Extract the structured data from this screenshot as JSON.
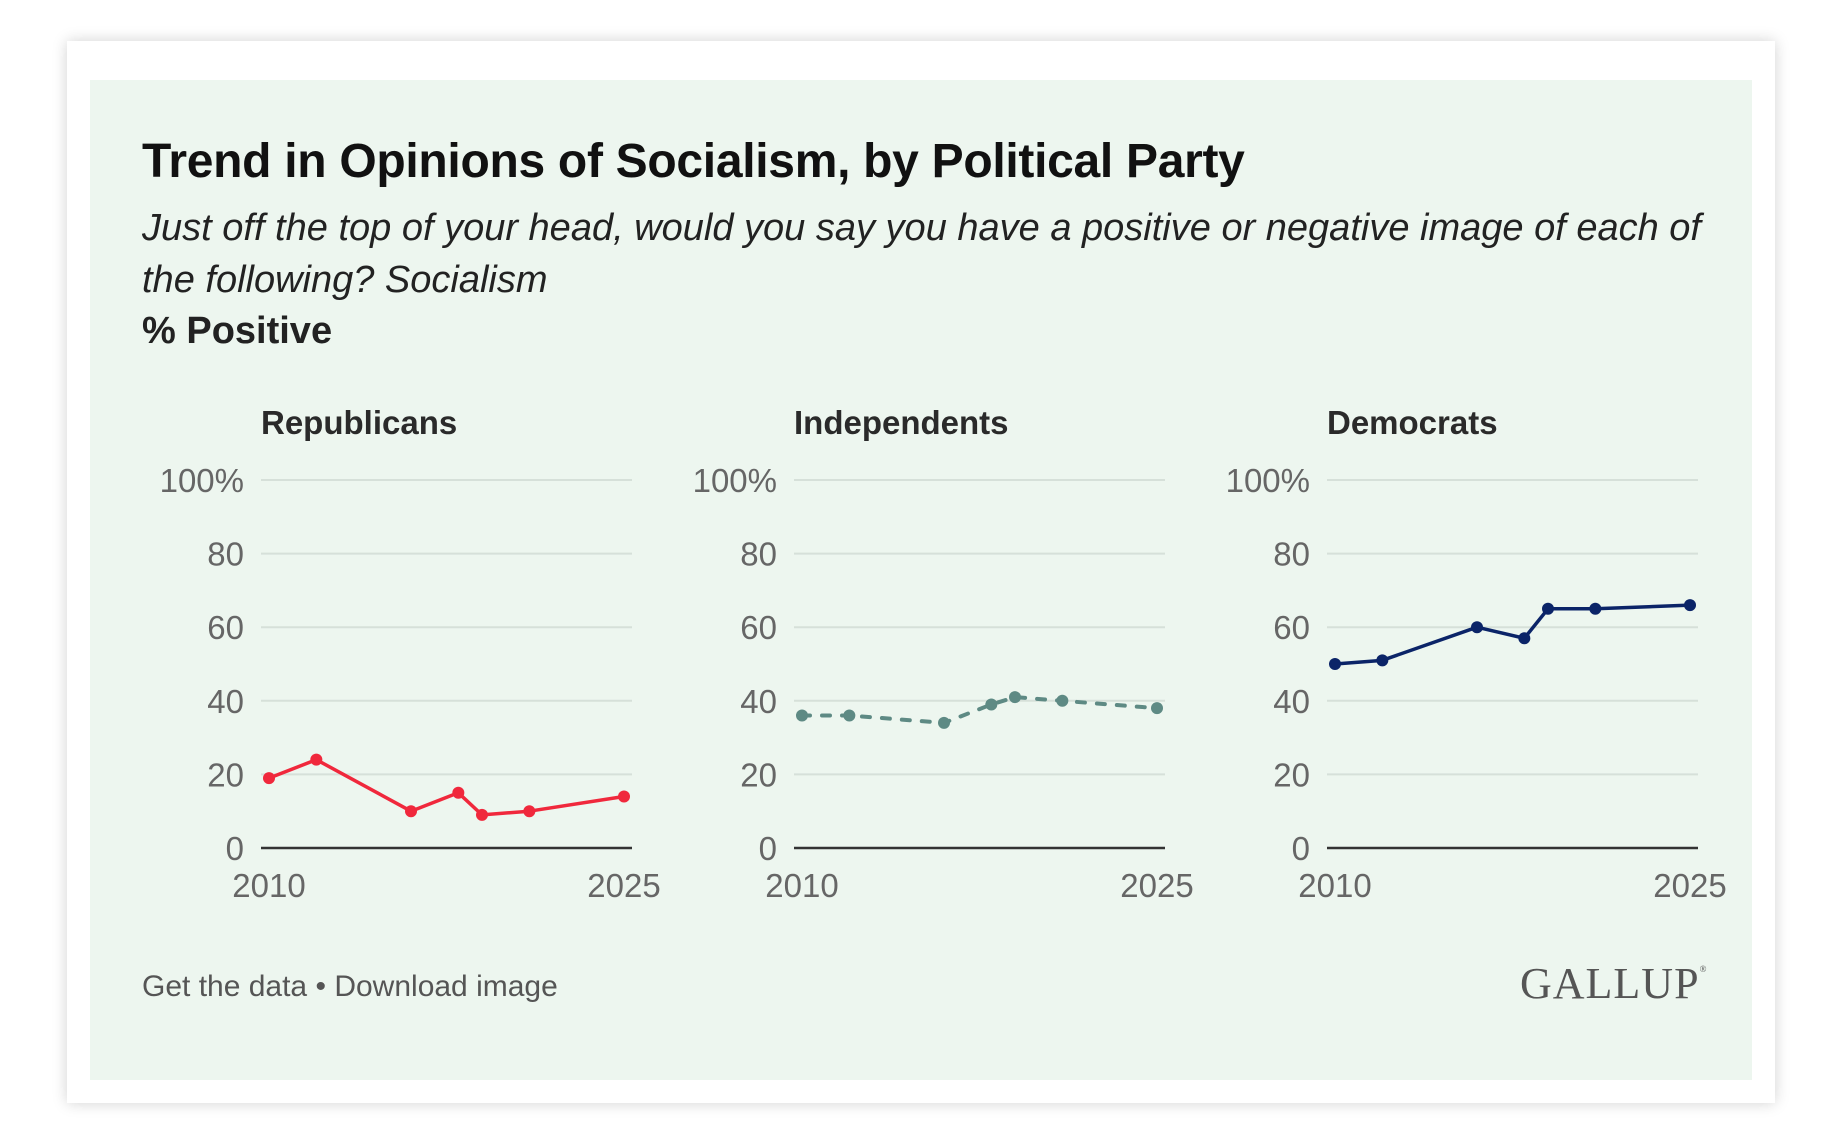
{
  "title": "Trend in Opinions of Socialism, by Political Party",
  "subtitle": "Just off the top of your head, would you say you have a positive or negative image of each of the following? Socialism",
  "unit_label": "% Positive",
  "footer": {
    "get_data": "Get the data",
    "separator": "•",
    "download": "Download image",
    "logo": "GALLUP"
  },
  "chart_data": [
    {
      "type": "line",
      "title": "Republicans",
      "x": [
        2010,
        2012,
        2016,
        2018,
        2019,
        2021,
        2025
      ],
      "values": [
        19,
        24,
        10,
        15,
        9,
        10,
        14
      ],
      "color": "#f0283c",
      "dashed": false,
      "ylim": [
        0,
        100
      ],
      "yticks": [
        "0",
        "20",
        "40",
        "60",
        "80",
        "100%"
      ],
      "xticks": [
        "2010",
        "2025"
      ],
      "grid": true
    },
    {
      "type": "line",
      "title": "Independents",
      "x": [
        2010,
        2012,
        2016,
        2018,
        2019,
        2021,
        2025
      ],
      "values": [
        36,
        36,
        34,
        39,
        41,
        40,
        38
      ],
      "color": "#5e8a84",
      "dashed": true,
      "ylim": [
        0,
        100
      ],
      "yticks": [
        "0",
        "20",
        "40",
        "60",
        "80",
        "100%"
      ],
      "xticks": [
        "2010",
        "2025"
      ],
      "grid": true
    },
    {
      "type": "line",
      "title": "Democrats",
      "x": [
        2010,
        2012,
        2016,
        2018,
        2019,
        2021,
        2025
      ],
      "values": [
        50,
        51,
        60,
        57,
        65,
        65,
        66
      ],
      "color": "#0b2468",
      "dashed": false,
      "ylim": [
        0,
        100
      ],
      "yticks": [
        "0",
        "20",
        "40",
        "60",
        "80",
        "100%"
      ],
      "xticks": [
        "2010",
        "2025"
      ],
      "grid": true
    }
  ]
}
